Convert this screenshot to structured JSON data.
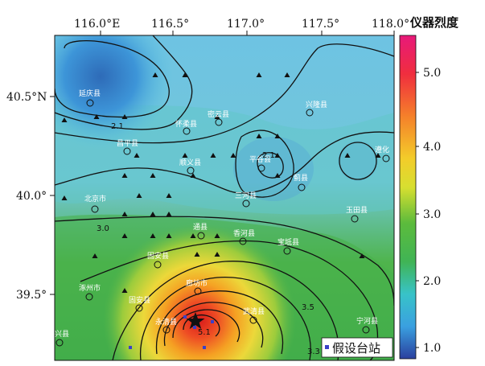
{
  "map": {
    "lon_ticks": [
      "116.0°E",
      "116.5°",
      "117.0°",
      "117.5°",
      "118.0°"
    ],
    "lat_ticks": [
      "40.5°N",
      "40.0°",
      "39.5°"
    ],
    "cities": [
      "延庆县",
      "怀柔县",
      "密云县",
      "兴隆县",
      "昌平县",
      "平谷县",
      "顺义县",
      "蓟县",
      "遵化",
      "北京市",
      "三河县",
      "玉田县",
      "通县",
      "香河县",
      "宝坻县",
      "固安县",
      "涿州市",
      "廊坊市",
      "武清县",
      "永清县",
      "固安县",
      "宁河县",
      "兴县"
    ],
    "contour_labels": [
      "2.1",
      "2.1",
      "3.0",
      "3.5",
      "5.1",
      "3.3"
    ],
    "legend_label": "假设台站"
  },
  "colorbar": {
    "title": "仪器烈度",
    "ticks": [
      "5.0",
      "4.0",
      "3.0",
      "2.0",
      "1.0"
    ],
    "colors": [
      "#e8197a",
      "#f2522e",
      "#f5a020",
      "#e6e630",
      "#7fcc3a",
      "#3db34a",
      "#38c3c8",
      "#3aa0e0",
      "#2a4fa8"
    ]
  }
}
